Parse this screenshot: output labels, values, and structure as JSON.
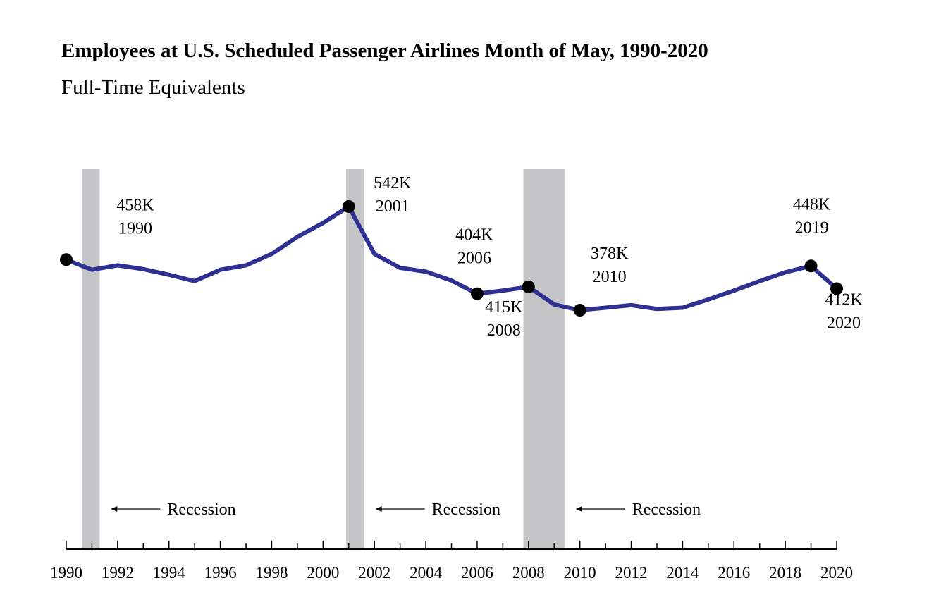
{
  "chart_data": {
    "type": "line",
    "title": "Employees at U.S. Scheduled Passenger Airlines Month of May, 1990-2020",
    "subtitle": "Full-Time Equivalents",
    "xlabel": "",
    "ylabel": "",
    "xlim": [
      1990,
      2020
    ],
    "ylim": [
      0,
      600
    ],
    "grid": false,
    "line_color": "#2e3192",
    "band_color": "#c4c5c7",
    "x_tick_labels": [
      "1990",
      "1992",
      "1994",
      "1996",
      "1998",
      "2000",
      "2002",
      "2004",
      "2006",
      "2008",
      "2010",
      "2012",
      "2014",
      "2016",
      "2018",
      "2020"
    ],
    "x": [
      1990,
      1991,
      1992,
      1993,
      1994,
      1995,
      1996,
      1997,
      1998,
      1999,
      2000,
      2001,
      2002,
      2003,
      2004,
      2005,
      2006,
      2007,
      2008,
      2009,
      2010,
      2011,
      2012,
      2013,
      2014,
      2015,
      2016,
      2017,
      2018,
      2019,
      2020
    ],
    "values": [
      458,
      442,
      449,
      443,
      434,
      424,
      442,
      449,
      467,
      494,
      516,
      542,
      467,
      445,
      439,
      425,
      404,
      409,
      415,
      387,
      378,
      382,
      386,
      380,
      382,
      395,
      409,
      424,
      438,
      448,
      412
    ],
    "highlighted_points": [
      {
        "x": 1990,
        "y": 458,
        "value_label": "458K",
        "year_label": "1990"
      },
      {
        "x": 2001,
        "y": 542,
        "value_label": "542K",
        "year_label": "2001"
      },
      {
        "x": 2006,
        "y": 404,
        "value_label": "404K",
        "year_label": "2006"
      },
      {
        "x": 2008,
        "y": 415,
        "value_label": "415K",
        "year_label": "2008"
      },
      {
        "x": 2010,
        "y": 378,
        "value_label": "378K",
        "year_label": "2010"
      },
      {
        "x": 2019,
        "y": 448,
        "value_label": "448K",
        "year_label": "2019"
      },
      {
        "x": 2020,
        "y": 412,
        "value_label": "412K",
        "year_label": "2020"
      }
    ],
    "recessions": [
      {
        "start": 1990.6,
        "end": 1991.3,
        "label": "Recession"
      },
      {
        "start": 2000.9,
        "end": 2001.6,
        "label": "Recession"
      },
      {
        "start": 2007.8,
        "end": 2009.4,
        "label": "Recession"
      }
    ]
  }
}
